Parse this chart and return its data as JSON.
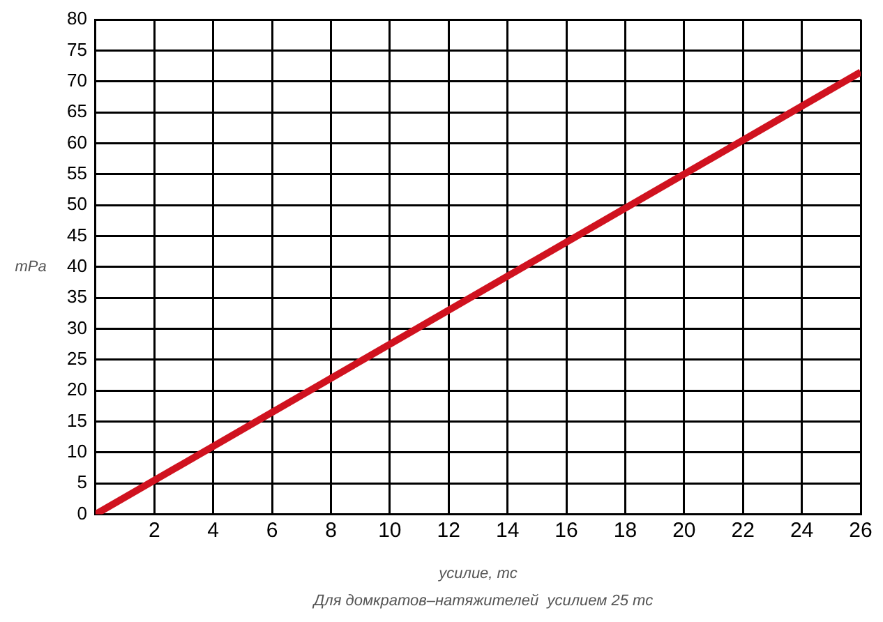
{
  "chart_data": {
    "type": "line",
    "x": [
      0,
      26
    ],
    "series": [
      {
        "color": "#d0121f",
        "values": [
          0,
          71.5
        ]
      }
    ],
    "xlabel": "усилие, тс",
    "ylabel": "mPa",
    "annotations": [
      "Для домкратов–натяжителей  усилием 25 тс"
    ],
    "xlim": [
      0,
      26
    ],
    "xticks": [
      2,
      4,
      6,
      8,
      10,
      12,
      14,
      16,
      18,
      20,
      22,
      24,
      26
    ],
    "ylim": [
      0,
      80
    ],
    "yticks": [
      0,
      5,
      10,
      15,
      20,
      25,
      30,
      35,
      40,
      45,
      50,
      55,
      60,
      65,
      70,
      75,
      80
    ],
    "grid": true,
    "legend": false,
    "marker": "none",
    "line_style": "solid"
  }
}
